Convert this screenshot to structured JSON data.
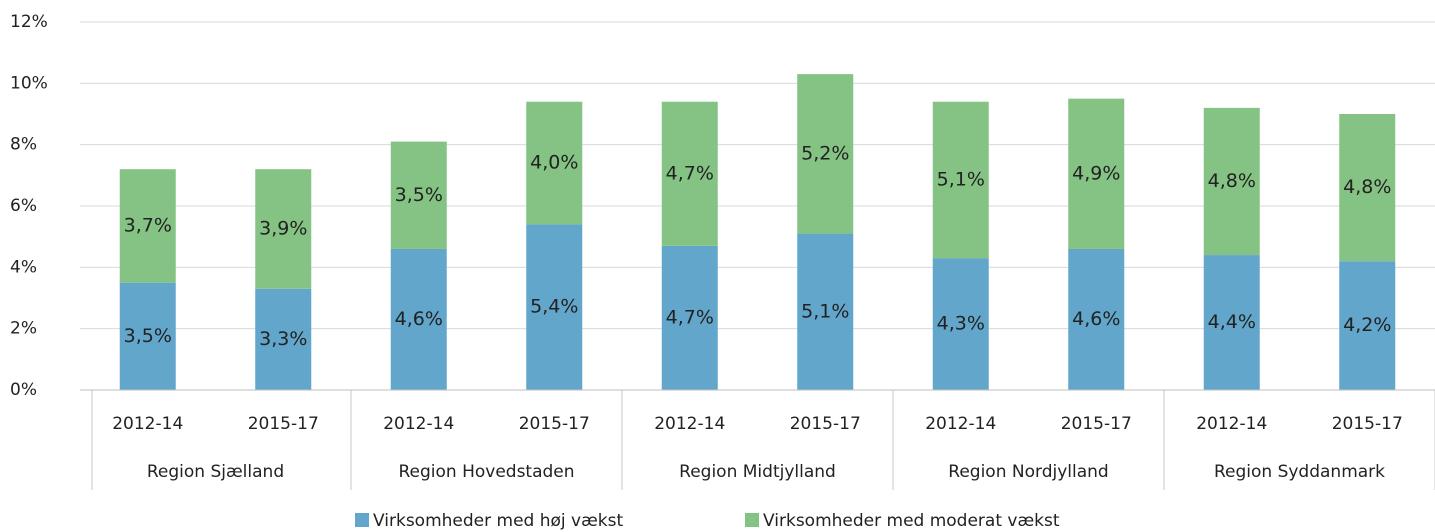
{
  "chart_data": {
    "type": "stacked_bar",
    "categories": [
      "2012-14",
      "2015-17",
      "2012-14",
      "2015-17",
      "2012-14",
      "2015-17",
      "2012-14",
      "2015-17",
      "2012-14",
      "2015-17"
    ],
    "groups": [
      "Region Sjælland",
      "Region Hovedstaden",
      "Region Midtjylland",
      "Region Nordjylland",
      "Region Syddanmark"
    ],
    "series": [
      {
        "name": "Virksomheder med høj vækst",
        "color": "#62a6cb",
        "values": [
          3.5,
          3.3,
          4.6,
          5.4,
          4.7,
          5.1,
          4.3,
          4.6,
          4.4,
          4.2
        ],
        "value_labels": [
          "3,5%",
          "3,3%",
          "4,6%",
          "5,4%",
          "4,7%",
          "5,1%",
          "4,3%",
          "4,6%",
          "4,4%",
          "4,2%"
        ]
      },
      {
        "name": "Virksomheder med moderat vækst",
        "color": "#84c383",
        "values": [
          3.7,
          3.9,
          3.5,
          4.0,
          4.7,
          5.2,
          5.1,
          4.9,
          4.8,
          4.8
        ],
        "value_labels": [
          "3,7%",
          "3,9%",
          "3,5%",
          "4,0%",
          "4,7%",
          "5,2%",
          "5,1%",
          "4,9%",
          "4,8%",
          "4,8%"
        ]
      }
    ],
    "ylim": [
      0,
      12
    ],
    "yticks": [
      {
        "value": 0,
        "label": "0%"
      },
      {
        "value": 2,
        "label": "2%"
      },
      {
        "value": 4,
        "label": "4%"
      },
      {
        "value": 6,
        "label": "6%"
      },
      {
        "value": 8,
        "label": "8%"
      },
      {
        "value": 10,
        "label": "10%"
      },
      {
        "value": 12,
        "label": "12%"
      }
    ],
    "grid": true,
    "legend": "bottom"
  }
}
